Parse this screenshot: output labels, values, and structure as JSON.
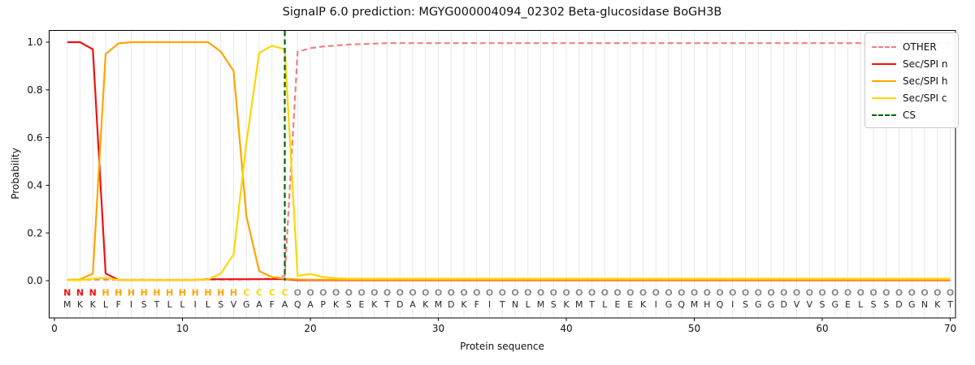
{
  "chart_data": {
    "type": "line",
    "title": "SignalP 6.0 prediction: MGYG000004094_02302 Beta-glucosidase BoGH3B",
    "xlabel": "Protein sequence",
    "ylabel": "Probability",
    "grid": "vertical-gridline-per-residue",
    "legend_position": "upper right",
    "xticks": {
      "values": [
        0,
        10,
        20,
        30,
        40,
        50,
        60,
        70
      ],
      "labels": [
        "0",
        "10",
        "20",
        "30",
        "40",
        "50",
        "60",
        "70"
      ]
    },
    "yticks": {
      "values": [
        0,
        0.2,
        0.4,
        0.6,
        0.8,
        1.0
      ],
      "labels": [
        "0.0",
        "0.2",
        "0.4",
        "0.6",
        "0.8",
        "1.0"
      ]
    },
    "xlim": [
      -0.45,
      70.45
    ],
    "ylim": [
      0,
      1.0
    ],
    "cs": {
      "label": "CS",
      "position": 18,
      "color": "#006400",
      "style": "dashed"
    },
    "series": [
      {
        "name": "OTHER",
        "color": "#f08080",
        "style": "dashed",
        "values": [
          0.004,
          0.004,
          0.004,
          0.004,
          0.004,
          0.004,
          0.004,
          0.004,
          0.004,
          0.004,
          0.004,
          0.004,
          0.004,
          0.004,
          0.005,
          0.006,
          0.01,
          0.02,
          0.96,
          0.975,
          0.982,
          0.986,
          0.99,
          0.992,
          0.994,
          0.996,
          0.996,
          0.996,
          0.996,
          0.996,
          0.996,
          0.996,
          0.996,
          0.996,
          0.996,
          0.996,
          0.996,
          0.996,
          0.996,
          0.996,
          0.996,
          0.996,
          0.996,
          0.996,
          0.996,
          0.996,
          0.996,
          0.996,
          0.996,
          0.996,
          0.996,
          0.996,
          0.996,
          0.996,
          0.996,
          0.996,
          0.996,
          0.996,
          0.996,
          0.996,
          0.996,
          0.996,
          0.996,
          0.996,
          0.996,
          0.996,
          0.996,
          0.996,
          0.996,
          0.996
        ]
      },
      {
        "name": "Sec/SPI n",
        "color": "#ee1111",
        "style": "solid",
        "values": [
          1.0,
          1.0,
          0.97,
          0.03,
          0.003,
          0.003,
          0.003,
          0.003,
          0.003,
          0.003,
          0.003,
          0.006,
          0.006,
          0.006,
          0.006,
          0.006,
          0.006,
          0.006,
          0.002,
          0.002,
          0.002,
          0.002,
          0.002,
          0.002,
          0.002,
          0.002,
          0.002,
          0.002,
          0.002,
          0.002,
          0.002,
          0.002,
          0.002,
          0.002,
          0.002,
          0.002,
          0.002,
          0.002,
          0.002,
          0.002,
          0.002,
          0.002,
          0.002,
          0.002,
          0.002,
          0.002,
          0.002,
          0.002,
          0.002,
          0.002,
          0.002,
          0.002,
          0.002,
          0.002,
          0.002,
          0.002,
          0.002,
          0.002,
          0.002,
          0.002,
          0.002,
          0.002,
          0.002,
          0.002,
          0.002,
          0.002,
          0.002,
          0.002,
          0.002,
          0.002
        ]
      },
      {
        "name": "Sec/SPI h",
        "color": "#ffa500",
        "style": "solid",
        "values": [
          0.003,
          0.005,
          0.03,
          0.95,
          0.995,
          1.0,
          1.0,
          1.0,
          1.0,
          1.0,
          1.0,
          1.0,
          0.96,
          0.88,
          0.27,
          0.04,
          0.015,
          0.008,
          0.005,
          0.004,
          0.004,
          0.004,
          0.004,
          0.004,
          0.004,
          0.004,
          0.004,
          0.004,
          0.004,
          0.004,
          0.004,
          0.004,
          0.004,
          0.004,
          0.004,
          0.004,
          0.004,
          0.004,
          0.004,
          0.004,
          0.004,
          0.004,
          0.004,
          0.004,
          0.004,
          0.004,
          0.004,
          0.004,
          0.004,
          0.004,
          0.004,
          0.004,
          0.004,
          0.004,
          0.004,
          0.004,
          0.004,
          0.004,
          0.004,
          0.004,
          0.004,
          0.004,
          0.004,
          0.004,
          0.004,
          0.004,
          0.004,
          0.004,
          0.004,
          0.004
        ]
      },
      {
        "name": "Sec/SPI c",
        "color": "#ffd700",
        "style": "solid",
        "values": [
          0.002,
          0.002,
          0.008,
          0.012,
          0.003,
          0.003,
          0.003,
          0.003,
          0.003,
          0.003,
          0.003,
          0.005,
          0.03,
          0.11,
          0.58,
          0.955,
          0.985,
          0.97,
          0.02,
          0.028,
          0.015,
          0.01,
          0.008,
          0.008,
          0.008,
          0.008,
          0.008,
          0.008,
          0.008,
          0.008,
          0.008,
          0.008,
          0.008,
          0.008,
          0.008,
          0.008,
          0.008,
          0.008,
          0.008,
          0.008,
          0.008,
          0.008,
          0.008,
          0.008,
          0.008,
          0.008,
          0.008,
          0.008,
          0.008,
          0.008,
          0.008,
          0.008,
          0.008,
          0.008,
          0.008,
          0.008,
          0.008,
          0.008,
          0.008,
          0.008,
          0.008,
          0.008,
          0.008,
          0.008,
          0.008,
          0.008,
          0.008,
          0.008,
          0.008,
          0.008
        ]
      }
    ],
    "legend": [
      {
        "label": "OTHER",
        "color": "#f08080",
        "style": "dashed"
      },
      {
        "label": "Sec/SPI n",
        "color": "#ee1111",
        "style": "solid"
      },
      {
        "label": "Sec/SPI h",
        "color": "#ffa500",
        "style": "solid"
      },
      {
        "label": "Sec/SPI c",
        "color": "#ffd700",
        "style": "solid"
      },
      {
        "label": "CS",
        "color": "#006400",
        "style": "dashed"
      }
    ],
    "sequence": "MKKLFISTLLILSVGAFAQAPKSEKTDAKMDKFITNLMSKMTLEEKIGQMHQISGGDVVSGELSSDGNKT",
    "regions": "NNNHHHHHHHHHHHCCCCOOOOOOOOOOOOOOOOOOOOOOOOOOOOOOOOOOOOOOOOOOOOOOOOOO",
    "region_colors": {
      "N": "#ee1111",
      "H": "#ffa500",
      "C": "#ffd700",
      "O": "#8c8c8c"
    },
    "sequence_color": "#2b2b2b"
  }
}
